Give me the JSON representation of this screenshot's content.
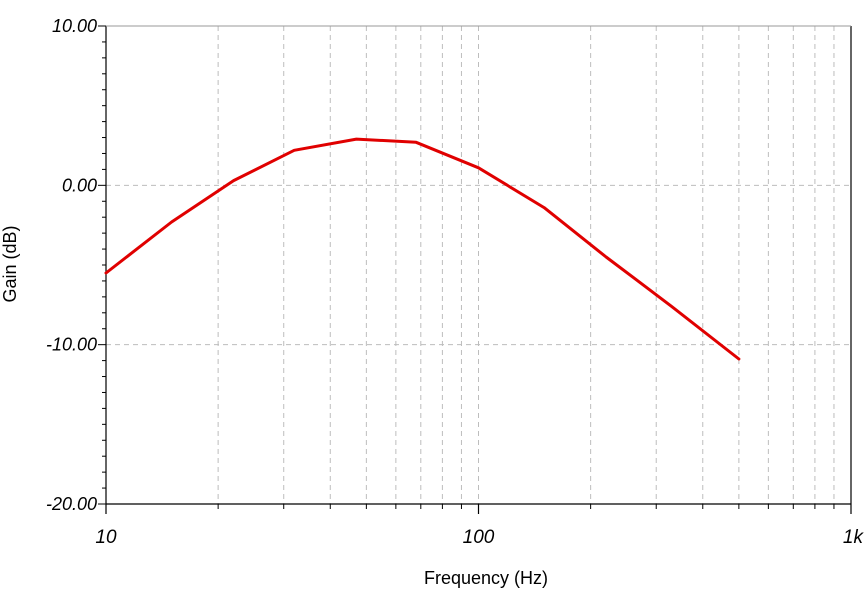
{
  "chart_data": {
    "type": "line",
    "title": "",
    "xlabel": "Frequency (Hz)",
    "ylabel": "Gain (dB)",
    "xscale": "log",
    "xlim": [
      10,
      1000
    ],
    "ylim": [
      -20,
      10
    ],
    "grid": true,
    "x_ticks": [
      {
        "value": 10,
        "label": "10"
      },
      {
        "value": 100,
        "label": "100"
      },
      {
        "value": 1000,
        "label": "1k"
      }
    ],
    "y_ticks": [
      {
        "value": 10,
        "label": "10.00"
      },
      {
        "value": 0,
        "label": "0.00"
      },
      {
        "value": -10,
        "label": "-10.00"
      },
      {
        "value": -20,
        "label": "-20.00"
      }
    ],
    "series": [
      {
        "color": "#e00000",
        "x": [
          10,
          15,
          22,
          32,
          47,
          68,
          100,
          150,
          220,
          330,
          500
        ],
        "y": [
          -5.5,
          -2.3,
          0.3,
          2.2,
          2.9,
          2.7,
          1.1,
          -1.4,
          -4.5,
          -7.6,
          -10.9
        ]
      }
    ]
  }
}
